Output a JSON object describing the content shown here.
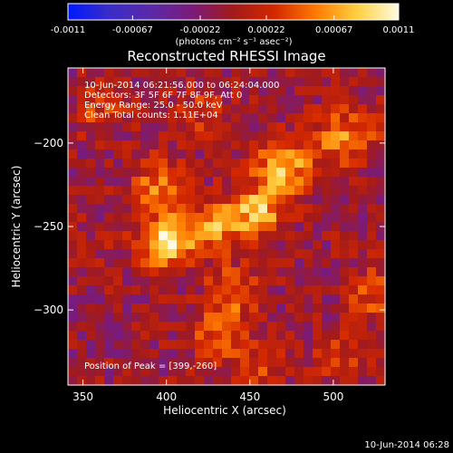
{
  "colorbar": {
    "ticks": [
      "-0.0011",
      "-0.00067",
      "-0.00022",
      "0.00022",
      "0.00067",
      "0.0011"
    ],
    "tick_values": [
      -0.0011,
      -0.00067,
      -0.00022,
      0.00022,
      0.00067,
      0.0011
    ],
    "units_label": "(photons cm⁻² s⁻¹ asec⁻²)",
    "range": [
      -0.0011,
      0.0011
    ],
    "stops": [
      "#0018ff",
      "#3a2cc8",
      "#5a2aa8",
      "#7a1b7a",
      "#a31a1a",
      "#d42800",
      "#ff7a00",
      "#ffd040",
      "#fffbe0"
    ]
  },
  "chart_data": {
    "type": "heatmap",
    "title": "Reconstructed RHESSI Image",
    "xlabel": "Heliocentric X (arcsec)",
    "ylabel": "Heliocentric Y (arcsec)",
    "xlim": [
      341,
      531
    ],
    "ylim": [
      -345,
      -155
    ],
    "xticks": [
      350,
      400,
      450,
      500
    ],
    "yticks": [
      -200,
      -250,
      -300
    ],
    "xtick_labels": [
      "350",
      "400",
      "450",
      "500"
    ],
    "ytick_labels": [
      "−200",
      "−250",
      "−300"
    ],
    "annotations": [
      "10-Jun-2014 06:21:56.000 to 06:24:04.000",
      "Detectors: 3F 5F 6F 7F 8F 9F, Att 0",
      "Energy Range: 25.0 - 50.0 keV",
      "Clean     Total counts: 1.11E+04"
    ],
    "peak_label": "Position of Peak = [399,-260]",
    "peak": [
      399,
      -260
    ],
    "sources": [
      {
        "x": 399,
        "y": -260,
        "intensity": 0.0011
      },
      {
        "x": 470,
        "y": -215,
        "intensity": 0.00085
      },
      {
        "x": 455,
        "y": -240,
        "intensity": 0.0008
      },
      {
        "x": 430,
        "y": -250,
        "intensity": 0.0007
      },
      {
        "x": 500,
        "y": -200,
        "intensity": 0.00045
      },
      {
        "x": 515,
        "y": -190,
        "intensity": 0.00035
      },
      {
        "x": 525,
        "y": -290,
        "intensity": 0.00045
      },
      {
        "x": 395,
        "y": -225,
        "intensity": 0.0006
      },
      {
        "x": 440,
        "y": -290,
        "intensity": 0.0005
      },
      {
        "x": 430,
        "y": -315,
        "intensity": 0.00045
      },
      {
        "x": 505,
        "y": -330,
        "intensity": 0.00035
      },
      {
        "x": 360,
        "y": -180,
        "intensity": 0.00035
      },
      {
        "x": 420,
        "y": -180,
        "intensity": 0.0003
      },
      {
        "x": 455,
        "y": -335,
        "intensity": 0.0003
      },
      {
        "x": 350,
        "y": -265,
        "intensity": 0.00015
      }
    ]
  },
  "footer": {
    "timestamp": "10-Jun-2014 06:28"
  }
}
